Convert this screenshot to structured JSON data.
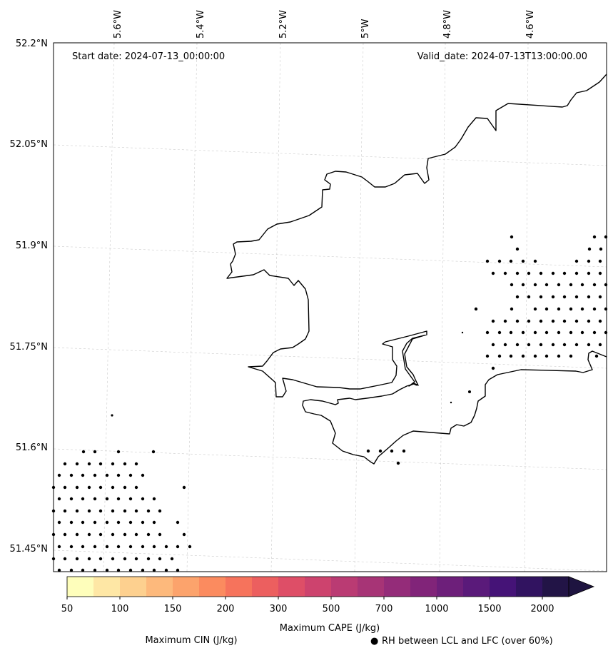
{
  "map": {
    "start_date_label": "Start date: 2024-07-13_00:00:00",
    "valid_date_label": "Valid_date: 2024-07-13T13:00:00.00",
    "lon_labels": [
      "5.6°W",
      "5.4°W",
      "5.2°W",
      "5°W",
      "4.8°W",
      "4.6°W"
    ],
    "lat_labels": [
      "52.2°N",
      "52.05°N",
      "51.9°N",
      "51.75°N",
      "51.6°N",
      "51.45°N"
    ],
    "extent": {
      "lon_min": -5.75,
      "lon_max": -4.42,
      "lat_min": 51.42,
      "lat_max": 52.2
    }
  },
  "colorbar": {
    "label": "Maximum CAPE (J/kg)",
    "tick_labels": [
      "50",
      "100",
      "150",
      "200",
      "300",
      "500",
      "700",
      "1000",
      "1500",
      "2000"
    ],
    "colors": [
      "#fefebb",
      "#fee7a5",
      "#fdd08f",
      "#fdb97c",
      "#fca36c",
      "#fb8b5f",
      "#f6735c",
      "#ec5f5f",
      "#de4e67",
      "#cd436e",
      "#ba3b73",
      "#a73476",
      "#942c79",
      "#812479",
      "#6d1f7a",
      "#5a1a7a",
      "#451377",
      "#311360",
      "#221446"
    ],
    "extend_color": "#1e1440"
  },
  "legend": {
    "cin_label": "Maximum CIN (J/kg)",
    "cin_color": "#ff0000",
    "rh_label": "RH between LCL and LFC (over 60%)",
    "rh_marker": "●"
  }
}
